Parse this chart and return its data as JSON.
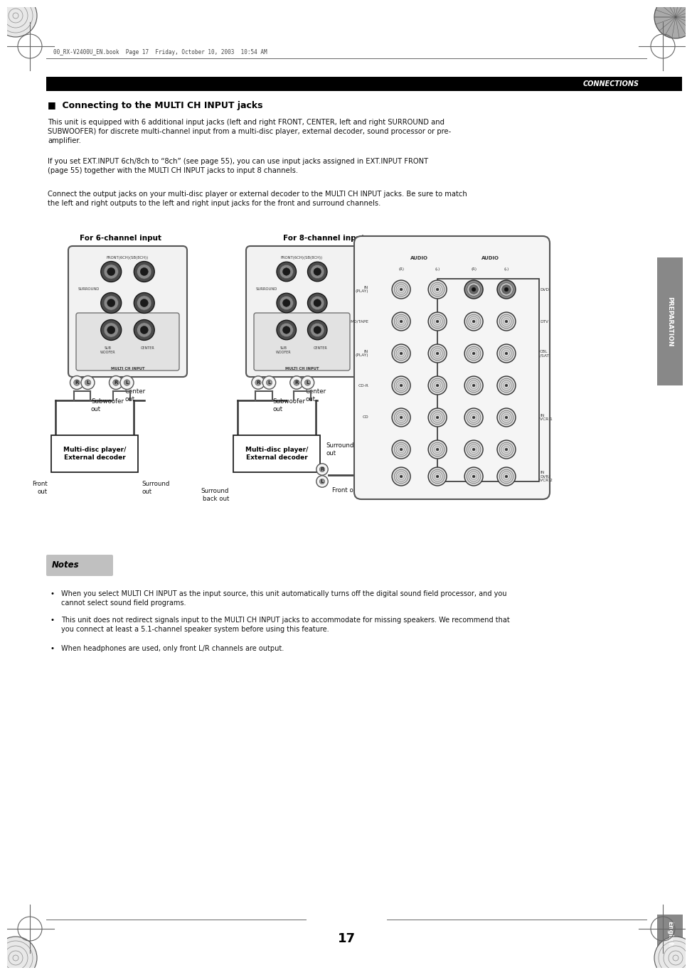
{
  "page_width": 9.54,
  "page_height": 13.51,
  "bg_color": "#ffffff",
  "header_file": "00_RX-V2400U_EN.book  Page 17  Friday, October 10, 2003  10:54 AM",
  "connections_label": "CONNECTIONS",
  "section_title": "■  Connecting to the MULTI CH INPUT jacks",
  "body_text_1": "This unit is equipped with 6 additional input jacks (left and right FRONT, CENTER, left and right SURROUND and\nSUBWOOFER) for discrete multi-channel input from a multi-disc player, external decoder, sound processor or pre-\namplifier.",
  "body_text_2": "If you set EXT.INPUT 6ch/8ch to “8ch” (see page 55), you can use input jacks assigned in EXT.INPUT FRONT\n(page 55) together with the MULTI CH INPUT jacks to input 8 channels.",
  "body_text_3": "Connect the output jacks on your multi-disc player or external decoder to the MULTI CH INPUT jacks. Be sure to match\nthe left and right outputs to the left and right input jacks for the front and surround channels.",
  "label_6ch": "For 6-channel input",
  "label_8ch": "For 8-channel input",
  "notes_title": "Notes",
  "note1": "When you select MULTI CH INPUT as the input source, this unit automatically turns off the digital sound field processor, and you\ncannot select sound field programs.",
  "note2": "This unit does not redirect signals input to the MULTI CH INPUT jacks to accommodate for missing speakers. We recommend that\nyou connect at least a 5.1-channel speaker system before using this feature.",
  "note3": "When headphones are used, only front L/R channels are output.",
  "preparation_label": "PREPARATION",
  "english_label": "English",
  "page_number": "17"
}
